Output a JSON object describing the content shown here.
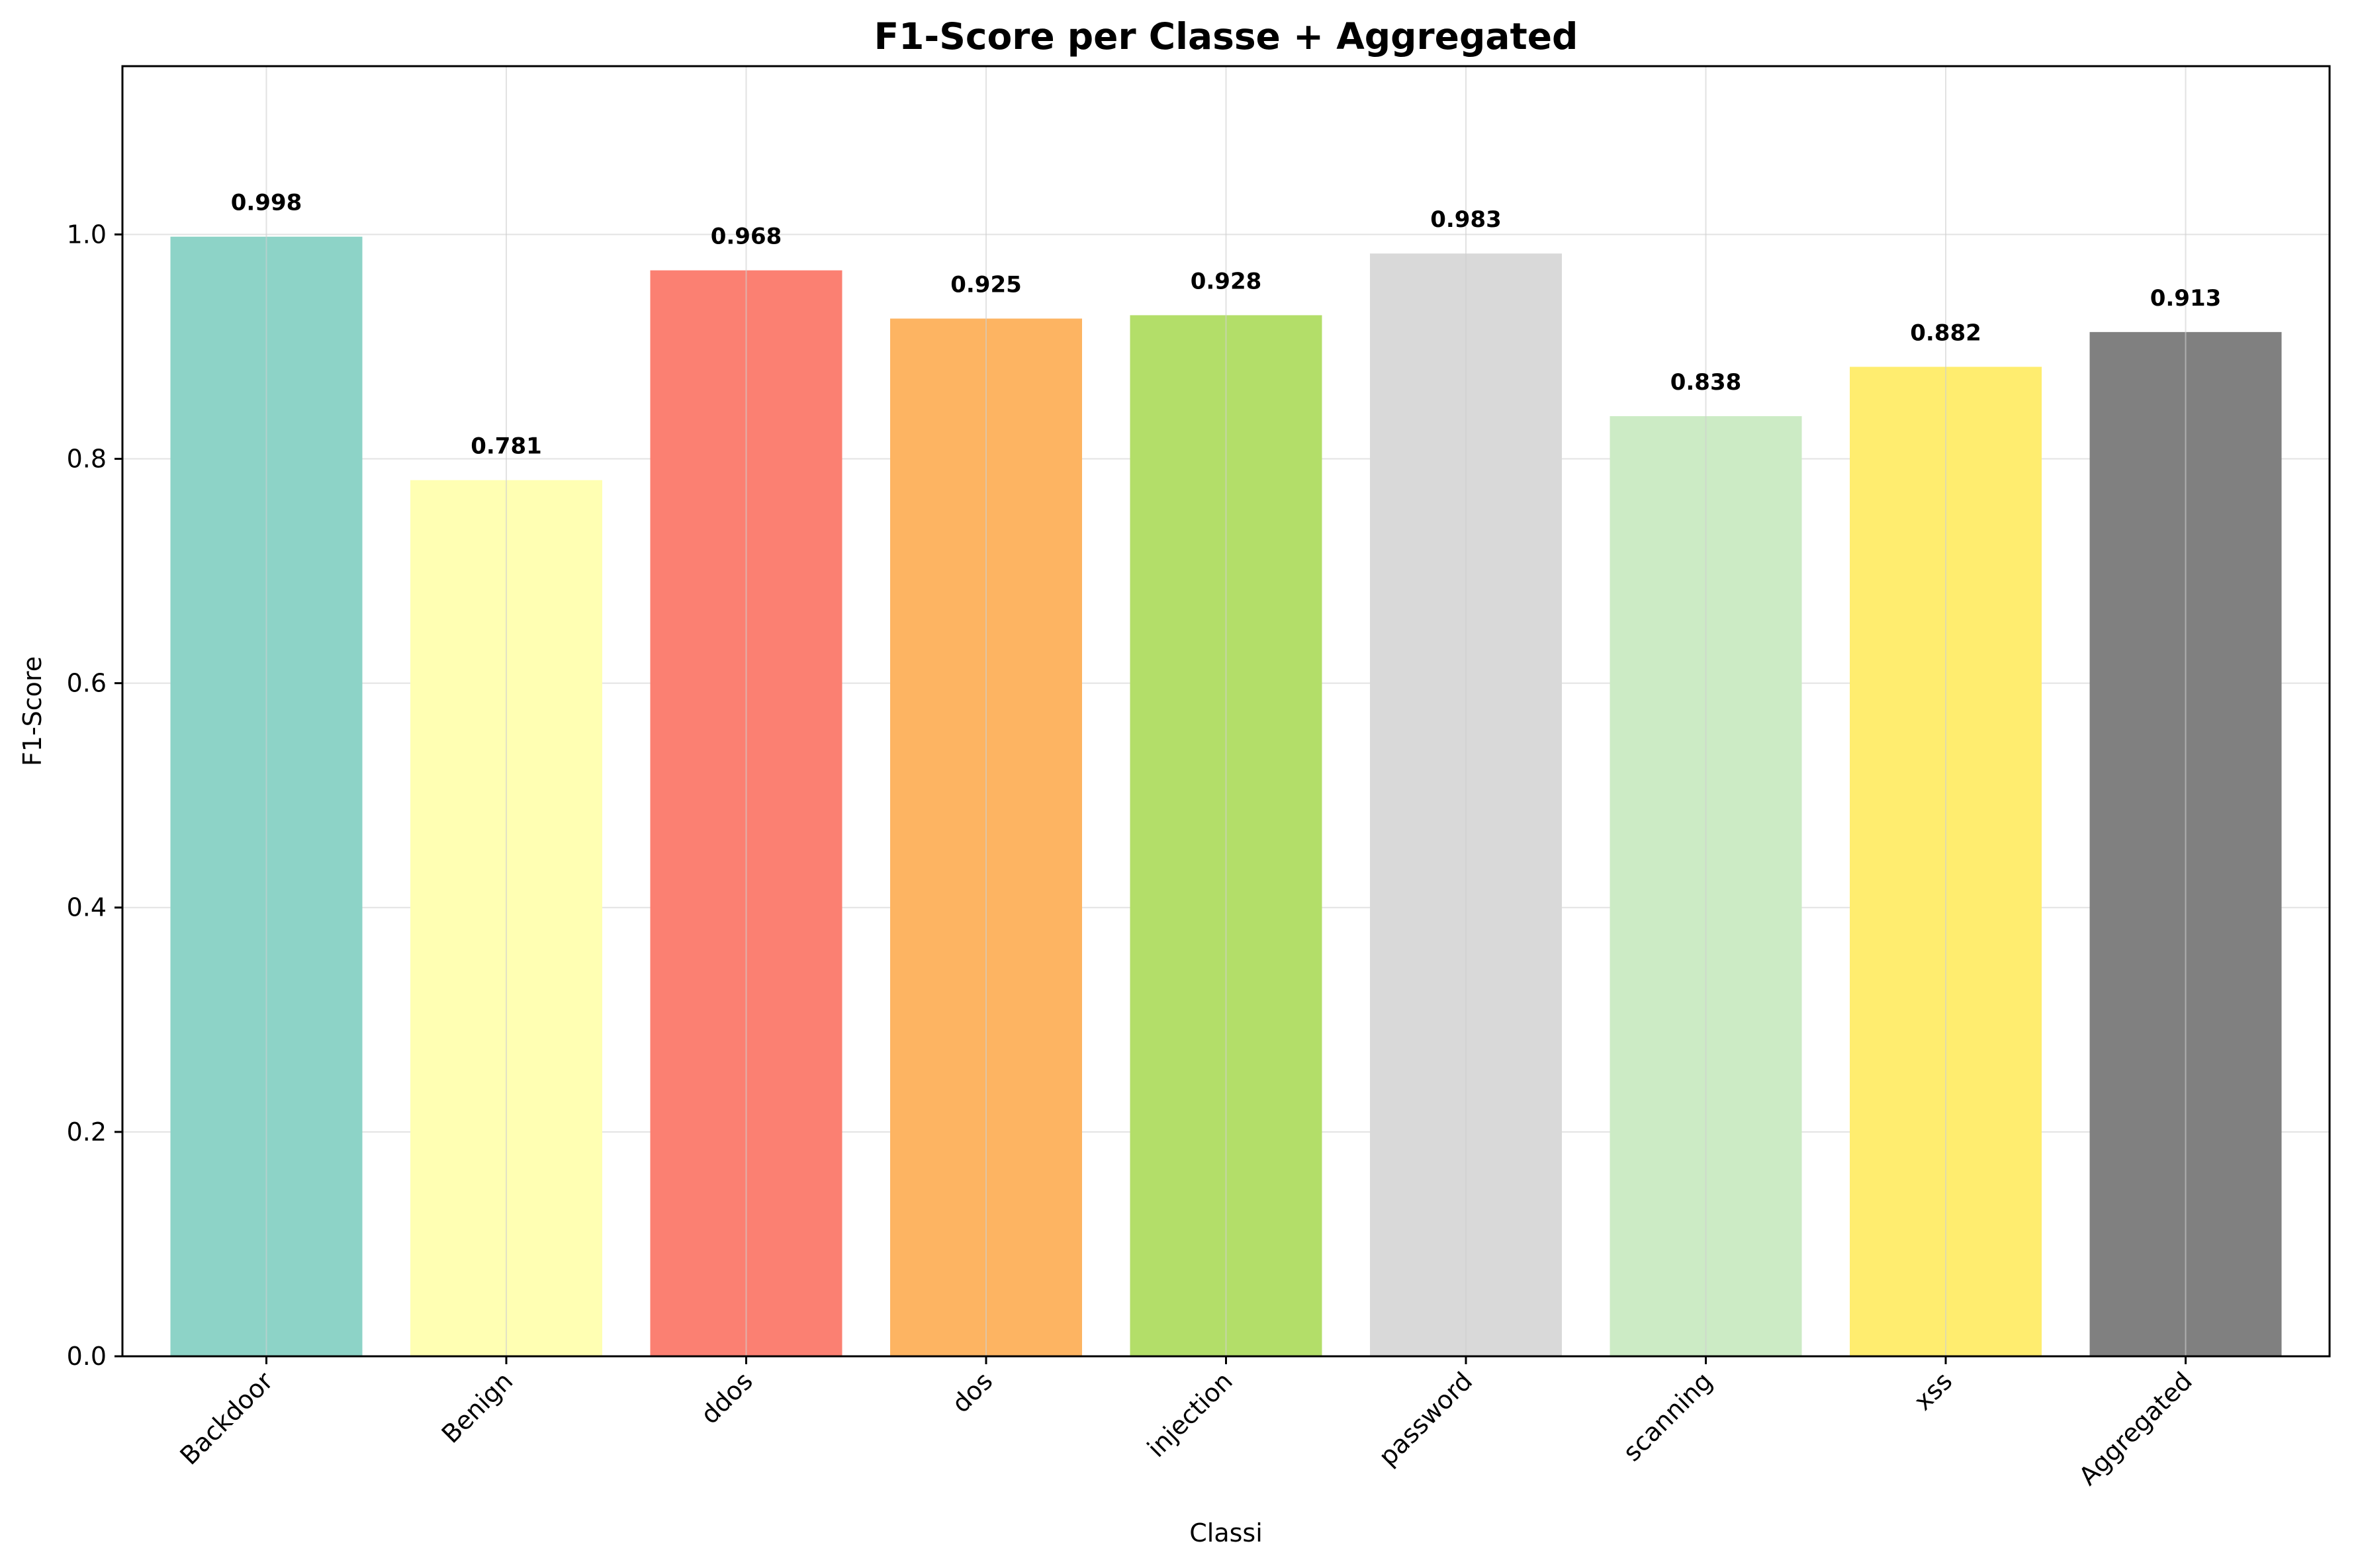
{
  "chart_data": {
    "type": "bar",
    "title": "F1-Score per Classe + Aggregated",
    "xlabel": "Classi",
    "ylabel": "F1-Score",
    "categories": [
      "Backdoor",
      "Benign",
      "ddos",
      "dos",
      "injection",
      "password",
      "scanning",
      "xss",
      "Aggregated"
    ],
    "values": [
      0.998,
      0.781,
      0.968,
      0.925,
      0.928,
      0.983,
      0.838,
      0.882,
      0.913
    ],
    "value_labels": [
      "0.998",
      "0.781",
      "0.968",
      "0.925",
      "0.928",
      "0.983",
      "0.838",
      "0.882",
      "0.913"
    ],
    "colors": [
      "#8dd3c7",
      "#ffffb3",
      "#fb8072",
      "#fdb462",
      "#b3de69",
      "#d9d9d9",
      "#ccebc5",
      "#ffed6f",
      "#808080"
    ],
    "ylim": [
      0,
      1.15
    ],
    "yticks": [
      0.0,
      0.2,
      0.4,
      0.6,
      0.8,
      1.0
    ],
    "ytick_labels": [
      "0.0",
      "0.2",
      "0.4",
      "0.6",
      "0.8",
      "1.0"
    ],
    "grid": true,
    "legend": "none"
  }
}
